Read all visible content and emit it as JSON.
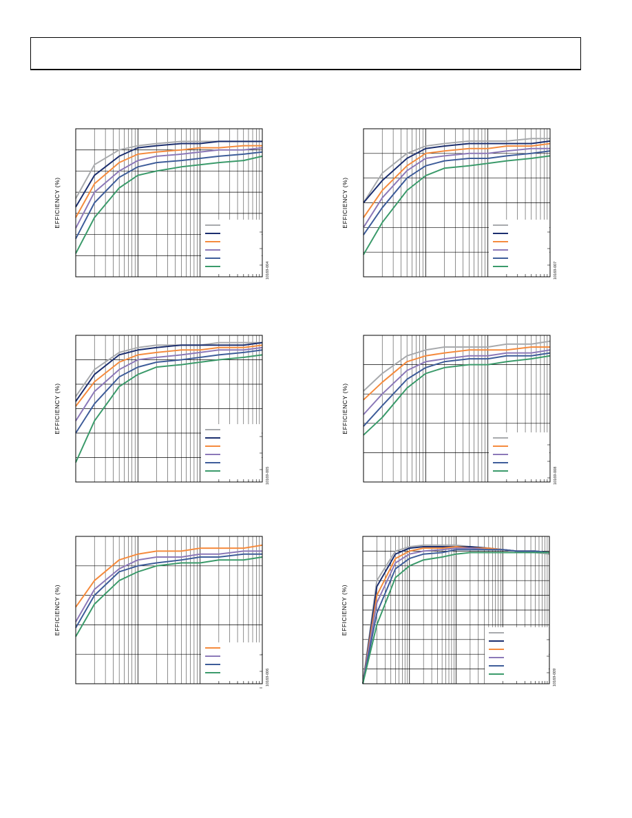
{
  "colors": {
    "gray": "#a7a9ac",
    "navy": "#1b2e6e",
    "orange": "#f58a3c",
    "purple": "#8b78b8",
    "blue": "#3d5c99",
    "green": "#3a9a6a"
  },
  "chart_data": [
    {
      "type": "line",
      "id": "fig1",
      "ylabel": "EFFICIENCY (%)",
      "code": "10169-004",
      "xscale": "log",
      "x": [
        0.001,
        0.002,
        0.005,
        0.01,
        0.02,
        0.05,
        0.1,
        0.2,
        0.5,
        1
      ],
      "ylim": [
        30,
        100
      ],
      "legend_position": "bottom-right",
      "series": [
        {
          "color": "gray",
          "values": [
            67,
            83,
            90,
            92,
            93,
            94,
            94,
            94,
            94,
            94
          ]
        },
        {
          "color": "navy",
          "values": [
            63,
            78,
            87,
            91,
            92,
            93,
            93,
            94,
            94,
            94
          ]
        },
        {
          "color": "orange",
          "values": [
            58,
            74,
            84,
            88,
            89,
            90,
            91,
            91,
            92,
            92
          ]
        },
        {
          "color": "purple",
          "values": [
            53,
            70,
            80,
            85,
            87,
            88,
            89,
            90,
            90,
            91
          ]
        },
        {
          "color": "blue",
          "values": [
            48,
            65,
            77,
            82,
            84,
            85,
            86,
            87,
            88,
            89
          ]
        },
        {
          "color": "green",
          "values": [
            41,
            58,
            72,
            78,
            80,
            82,
            83,
            84,
            85,
            87
          ]
        }
      ]
    },
    {
      "type": "line",
      "id": "fig2",
      "ylabel": "EFFICIENCY (%)",
      "code": "10169-007",
      "xscale": "log",
      "x": [
        0.001,
        0.002,
        0.005,
        0.01,
        0.02,
        0.05,
        0.1,
        0.2,
        0.5,
        1
      ],
      "ylim": [
        40,
        100
      ],
      "legend_position": "bottom-right",
      "series": [
        {
          "color": "gray",
          "values": [
            70,
            82,
            90,
            93,
            94,
            95,
            95,
            95,
            96,
            96
          ]
        },
        {
          "color": "navy",
          "values": [
            70,
            79,
            88,
            92,
            93,
            94,
            94,
            94,
            94,
            95
          ]
        },
        {
          "color": "orange",
          "values": [
            64,
            75,
            85,
            90,
            91,
            92,
            92,
            93,
            93,
            94
          ]
        },
        {
          "color": "purple",
          "values": [
            60,
            72,
            83,
            88,
            89,
            90,
            90,
            91,
            92,
            92
          ]
        },
        {
          "color": "blue",
          "values": [
            57,
            68,
            80,
            85,
            87,
            88,
            88,
            89,
            90,
            91
          ]
        },
        {
          "color": "green",
          "values": [
            49,
            62,
            75,
            81,
            84,
            85,
            86,
            87,
            88,
            89
          ]
        }
      ]
    },
    {
      "type": "line",
      "id": "fig3",
      "ylabel": "EFFICIENCY (%)",
      "code": "10169-005",
      "xscale": "log",
      "x": [
        0.001,
        0.002,
        0.005,
        0.01,
        0.02,
        0.05,
        0.1,
        0.2,
        0.5,
        1
      ],
      "ylim": [
        40,
        100
      ],
      "legend_position": "bottom-right",
      "series": [
        {
          "color": "gray",
          "values": [
            75,
            86,
            93,
            95,
            96,
            96,
            96,
            97,
            97,
            97
          ]
        },
        {
          "color": "navy",
          "values": [
            73,
            84,
            92,
            94,
            95,
            96,
            96,
            96,
            96,
            97
          ]
        },
        {
          "color": "orange",
          "values": [
            71,
            81,
            89,
            92,
            93,
            94,
            94,
            95,
            95,
            96
          ]
        },
        {
          "color": "purple",
          "values": [
            65,
            77,
            86,
            90,
            91,
            92,
            93,
            94,
            94,
            95
          ]
        },
        {
          "color": "blue",
          "values": [
            60,
            72,
            83,
            87,
            89,
            90,
            91,
            92,
            93,
            94
          ]
        },
        {
          "color": "green",
          "values": [
            48,
            65,
            79,
            84,
            87,
            88,
            89,
            90,
            91,
            92
          ]
        }
      ]
    },
    {
      "type": "line",
      "id": "fig4",
      "ylabel": "EFFICIENCY (%)",
      "code": "10169-008",
      "xscale": "log",
      "x": [
        0.001,
        0.002,
        0.005,
        0.01,
        0.02,
        0.05,
        0.1,
        0.2,
        0.5,
        1
      ],
      "ylim": [
        50,
        100
      ],
      "legend_position": "bottom-right",
      "series": [
        {
          "color": "gray",
          "values": [
            81,
            87,
            93,
            95,
            96,
            96,
            96,
            97,
            97,
            98
          ]
        },
        {
          "color": "orange",
          "values": [
            78,
            84,
            91,
            93,
            94,
            95,
            95,
            95,
            96,
            96
          ]
        },
        {
          "color": "purple",
          "values": [
            73,
            80,
            88,
            91,
            92,
            93,
            93,
            94,
            94,
            95
          ]
        },
        {
          "color": "blue",
          "values": [
            69,
            76,
            85,
            89,
            91,
            92,
            92,
            93,
            93,
            94
          ]
        },
        {
          "color": "green",
          "values": [
            66,
            72,
            82,
            87,
            89,
            90,
            90,
            91,
            92,
            93
          ]
        }
      ]
    },
    {
      "type": "line",
      "id": "fig5",
      "ylabel": "EFFICIENCY (%)",
      "code": "10169-006",
      "xscale": "log",
      "x": [
        0.001,
        0.002,
        0.005,
        0.01,
        0.02,
        0.05,
        0.1,
        0.2,
        0.5,
        1
      ],
      "ylim": [
        50,
        100
      ],
      "legend_position": "bottom-right",
      "series": [
        {
          "color": "orange",
          "values": [
            76,
            85,
            92,
            94,
            95,
            95,
            96,
            96,
            96,
            97
          ]
        },
        {
          "color": "purple",
          "values": [
            71,
            82,
            89,
            92,
            93,
            93,
            94,
            94,
            95,
            95
          ]
        },
        {
          "color": "blue",
          "values": [
            69,
            80,
            88,
            90,
            91,
            92,
            93,
            93,
            94,
            94
          ]
        },
        {
          "color": "green",
          "values": [
            66,
            77,
            85,
            88,
            90,
            91,
            91,
            92,
            92,
            93
          ]
        }
      ]
    },
    {
      "type": "line",
      "id": "fig6",
      "ylabel": "EFFICIENCY (%)",
      "code": "10169-009",
      "xscale": "log",
      "x": [
        0.0001,
        0.0002,
        0.0005,
        0.001,
        0.002,
        0.005,
        0.01,
        0.02,
        0.05,
        0.1,
        0.2,
        0.5,
        1
      ],
      "ylim": [
        0,
        100
      ],
      "legend_position": "bottom-right",
      "series": [
        {
          "color": "gray",
          "values": [
            0,
            70,
            90,
            93,
            94,
            94,
            94,
            93,
            92,
            91,
            90,
            89,
            88
          ]
        },
        {
          "color": "navy",
          "values": [
            0,
            66,
            88,
            92,
            93,
            93,
            93,
            93,
            92,
            91,
            90,
            90,
            89
          ]
        },
        {
          "color": "orange",
          "values": [
            0,
            60,
            85,
            90,
            92,
            92,
            93,
            92,
            92,
            91,
            90,
            90,
            89
          ]
        },
        {
          "color": "purple",
          "values": [
            0,
            55,
            82,
            88,
            90,
            91,
            92,
            92,
            91,
            91,
            90,
            90,
            89
          ]
        },
        {
          "color": "blue",
          "values": [
            0,
            48,
            78,
            85,
            88,
            89,
            91,
            91,
            91,
            91,
            90,
            90,
            89
          ]
        },
        {
          "color": "green",
          "values": [
            0,
            40,
            72,
            80,
            84,
            86,
            88,
            89,
            89,
            89,
            89,
            89,
            89
          ]
        }
      ]
    }
  ]
}
